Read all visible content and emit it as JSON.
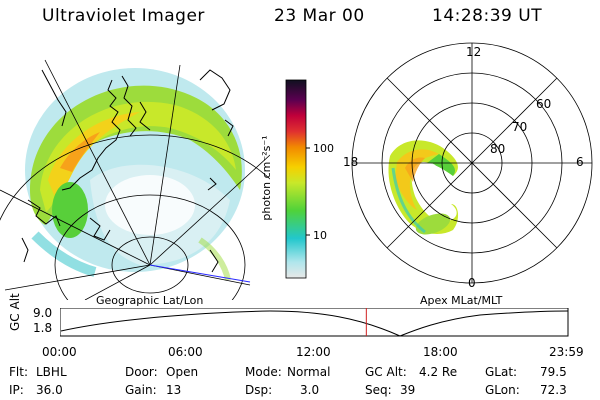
{
  "header": {
    "title": "Ultraviolet Imager",
    "date": "23 Mar 00",
    "time": "14:28:39 UT"
  },
  "colorbar": {
    "unit_label": "photon cm⁻²s⁻¹",
    "tick_100": "100",
    "tick_10": "10"
  },
  "polar_grid": {
    "mlt_12": "12",
    "mlt_18": "18",
    "mlt_6": "6",
    "mlt_0": "0",
    "lat_60": "60",
    "lat_70": "70",
    "lat_80": "80"
  },
  "timeline": {
    "left_caption": "Geographic Lat/Lon",
    "right_caption": "Apex MLat/MLT",
    "ylabel": "GC Alt",
    "y_top": "9.0",
    "y_bottom": "1.8",
    "ticks": [
      "00:00",
      "06:00",
      "12:00",
      "18:00",
      "23:59"
    ],
    "current_time_fraction": 0.603
  },
  "status": {
    "filter_label": "Flt:",
    "filter_value": "LBHL",
    "ip_label": "IP:",
    "ip_value": "36.0",
    "door_label": "Door:",
    "door_value": "Open",
    "gain_label": "Gain:",
    "gain_value": "13",
    "mode_label": "Mode:",
    "mode_value": "Normal",
    "dsp_label": "Dsp:",
    "dsp_value": "3.0",
    "gcalt_label": "GC Alt:",
    "gcalt_value": "4.2 Re",
    "seq_label": "Seq:",
    "seq_value": "39",
    "glat_label": "GLat:",
    "glat_value": "79.5",
    "glon_label": "GLon:",
    "glon_value": "72.3"
  },
  "colors": {
    "colorbar_stops": [
      "#e8e8e8",
      "#b0e6ec",
      "#22c7cc",
      "#4fd23a",
      "#c8e82a",
      "#f6d000",
      "#f28a00",
      "#e03030",
      "#c0003a",
      "#5a0050",
      "#101020"
    ]
  }
}
